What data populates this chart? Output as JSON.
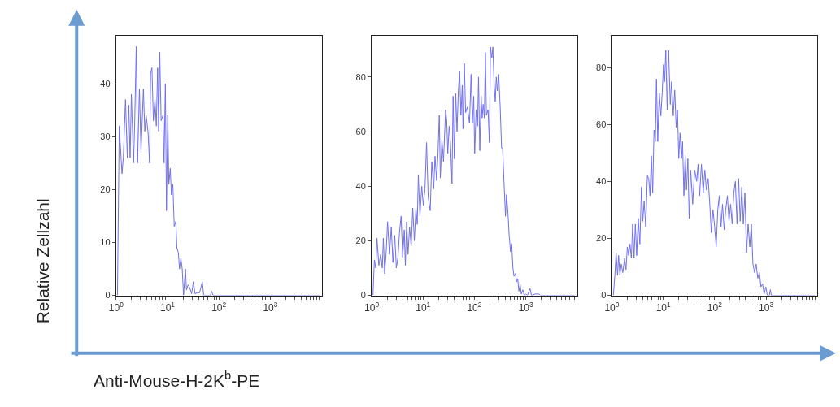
{
  "chart_data": [
    {
      "type": "line",
      "xlabel": "Anti-Mouse-H-2K$^{b}$-PE",
      "ylabel": "Relative Zellzahl",
      "log": "x",
      "grid": false,
      "marker": "none",
      "line_style": "solid",
      "xlim": [
        1,
        10000
      ],
      "ylim": [
        0,
        49
      ],
      "xticks": [
        {
          "value": 1,
          "label": "10$^{0}$"
        },
        {
          "value": 2,
          "label": null
        },
        {
          "value": 3,
          "label": null
        },
        {
          "value": 4,
          "label": null
        },
        {
          "value": 5,
          "label": null
        },
        {
          "value": 6,
          "label": null
        },
        {
          "value": 7,
          "label": null
        },
        {
          "value": 8,
          "label": null
        },
        {
          "value": 9,
          "label": null
        },
        {
          "value": 10,
          "label": "10$^{1}$"
        },
        {
          "value": 20,
          "label": null
        },
        {
          "value": 30,
          "label": null
        },
        {
          "value": 40,
          "label": null
        },
        {
          "value": 50,
          "label": null
        },
        {
          "value": 60,
          "label": null
        },
        {
          "value": 70,
          "label": null
        },
        {
          "value": 80,
          "label": null
        },
        {
          "value": 90,
          "label": null
        },
        {
          "value": 100,
          "label": "10$^{2}$"
        },
        {
          "value": 200,
          "label": null
        },
        {
          "value": 300,
          "label": null
        },
        {
          "value": 400,
          "label": null
        },
        {
          "value": 500,
          "label": null
        },
        {
          "value": 600,
          "label": null
        },
        {
          "value": 700,
          "label": null
        },
        {
          "value": 800,
          "label": null
        },
        {
          "value": 900,
          "label": null
        },
        {
          "value": 1000,
          "label": "10$^{3}$"
        },
        {
          "value": 2000,
          "label": null
        },
        {
          "value": 3000,
          "label": null
        },
        {
          "value": 4000,
          "label": null
        },
        {
          "value": 5000,
          "label": null
        },
        {
          "value": 6000,
          "label": null
        },
        {
          "value": 7000,
          "label": null
        },
        {
          "value": 8000,
          "label": null
        },
        {
          "value": 9000,
          "label": null
        }
      ],
      "yticks": [
        0,
        10,
        20,
        30,
        40
      ],
      "series": [
        {
          "color": "#7070ee",
          "x": [
            1.06,
            1.15,
            1.3,
            1.38,
            1.52,
            1.65,
            1.76,
            1.87,
            1.98,
            2.18,
            2.29,
            2.46,
            2.61,
            2.84,
            3.05,
            3.39,
            3.61,
            3.83,
            4.17,
            4.47,
            4.69,
            4.98,
            5.3,
            5.69,
            6.05,
            6.41,
            6.72,
            7.06,
            7.51,
            8.15,
            8.55,
            9.08,
            9.53,
            10.1,
            10.6,
            11.3,
            11.9,
            12.7,
            13.5,
            14.5,
            15.2,
            16.3,
            17.1,
            18.2,
            19.3,
            20.5,
            22.3,
            23.4,
            25.2,
            27,
            29.4,
            31.9,
            34.3,
            37.3,
            42.1,
            47.5,
            50.5,
            68,
            72,
            77,
            9000
          ],
          "values": [
            0,
            32,
            23,
            26,
            37,
            26,
            36,
            26,
            38,
            25,
            32,
            47,
            25,
            39,
            27,
            39,
            31,
            34,
            31,
            25,
            42,
            43,
            33,
            37,
            32,
            43,
            31,
            46,
            33,
            34,
            25,
            40,
            16,
            34,
            21,
            24,
            19,
            21,
            13,
            14,
            9,
            8,
            5,
            7,
            5,
            0,
            5,
            1,
            2,
            1.5,
            0.3,
            2.6,
            0.3,
            0.5,
            0.5,
            2.6,
            0,
            0,
            0.8,
            0,
            0
          ]
        }
      ]
    },
    {
      "type": "line",
      "log": "x",
      "grid": false,
      "marker": "none",
      "line_style": "solid",
      "xlim": [
        1,
        10000
      ],
      "ylim": [
        0,
        95
      ],
      "xticks": [
        {
          "value": 1,
          "label": "10$^{0}$"
        },
        {
          "value": 2,
          "label": null
        },
        {
          "value": 3,
          "label": null
        },
        {
          "value": 4,
          "label": null
        },
        {
          "value": 5,
          "label": null
        },
        {
          "value": 6,
          "label": null
        },
        {
          "value": 7,
          "label": null
        },
        {
          "value": 8,
          "label": null
        },
        {
          "value": 9,
          "label": null
        },
        {
          "value": 10,
          "label": "10$^{1}$"
        },
        {
          "value": 20,
          "label": null
        },
        {
          "value": 30,
          "label": null
        },
        {
          "value": 40,
          "label": null
        },
        {
          "value": 50,
          "label": null
        },
        {
          "value": 60,
          "label": null
        },
        {
          "value": 70,
          "label": null
        },
        {
          "value": 80,
          "label": null
        },
        {
          "value": 90,
          "label": null
        },
        {
          "value": 100,
          "label": "10$^{2}$"
        },
        {
          "value": 200,
          "label": null
        },
        {
          "value": 300,
          "label": null
        },
        {
          "value": 400,
          "label": null
        },
        {
          "value": 500,
          "label": null
        },
        {
          "value": 600,
          "label": null
        },
        {
          "value": 700,
          "label": null
        },
        {
          "value": 800,
          "label": null
        },
        {
          "value": 900,
          "label": null
        },
        {
          "value": 1000,
          "label": "10$^{3}$"
        },
        {
          "value": 2000,
          "label": null
        },
        {
          "value": 3000,
          "label": null
        },
        {
          "value": 4000,
          "label": null
        },
        {
          "value": 5000,
          "label": null
        },
        {
          "value": 6000,
          "label": null
        },
        {
          "value": 7000,
          "label": null
        },
        {
          "value": 8000,
          "label": null
        },
        {
          "value": 9000,
          "label": null
        }
      ],
      "yticks": [
        0,
        20,
        40,
        60,
        80
      ],
      "series": [
        {
          "color": "#7070ee",
          "x": [
            1.06,
            1.13,
            1.2,
            1.27,
            1.38,
            1.5,
            1.61,
            1.69,
            1.79,
            1.92,
            2.04,
            2.22,
            2.41,
            2.59,
            2.81,
            3.02,
            3.25,
            3.48,
            3.74,
            4.01,
            4.31,
            4.52,
            4.8,
            5.1,
            5.47,
            5.88,
            6.31,
            6.77,
            7.27,
            7.71,
            8.09,
            8.69,
            9.43,
            10.1,
            10.9,
            11.7,
            12.6,
            13.8,
            14.8,
            16.1,
            17.1,
            18.4,
            19.5,
            20.7,
            21.7,
            23.3,
            25,
            27.5,
            28.9,
            30.3,
            32.2,
            34.1,
            36.6,
            38.4,
            40.7,
            43.2,
            45.8,
            48.6,
            51.5,
            54.6,
            57.9,
            59.9,
            63.5,
            67.3,
            72.8,
            80.1,
            85.9,
            91.1,
            96.7,
            101,
            108,
            115,
            120,
            127,
            135,
            141,
            148,
            156,
            163,
            171,
            184,
            195,
            205,
            218,
            228,
            242,
            254,
            266,
            279,
            296,
            317,
            337,
            353,
            375,
            402,
            421,
            449,
            474,
            504,
            529,
            561,
            589,
            626,
            664,
            696,
            731,
            776,
            814,
            876,
            931,
            1000,
            1075,
            1209,
            1285,
            1540,
            1822,
            1930,
            9000
          ],
          "values": [
            0,
            13,
            10,
            21,
            11,
            15,
            10,
            21,
            8,
            16,
            27,
            15,
            25,
            12,
            22,
            10,
            14,
            23,
            29,
            14,
            24,
            11,
            27,
            15,
            25,
            18,
            32,
            20,
            32,
            26,
            44,
            29,
            40,
            33,
            39,
            56,
            36,
            31,
            49,
            39,
            51,
            42,
            52,
            66,
            43,
            57,
            49,
            68,
            64,
            52,
            62,
            56,
            41,
            73,
            50,
            74,
            60,
            75,
            82,
            66,
            77,
            61,
            85,
            67,
            69,
            63,
            81,
            63,
            73,
            52,
            68,
            62,
            80,
            53,
            73,
            65,
            70,
            65,
            89,
            66,
            68,
            56,
            91,
            87,
            91,
            77,
            71,
            80,
            75,
            81,
            69,
            54,
            54,
            42,
            29,
            37,
            30,
            22,
            16,
            19,
            10,
            7,
            8,
            5,
            6,
            1.5,
            4,
            0.5,
            2,
            0,
            0.5,
            0,
            2.5,
            0,
            0.5,
            0.5,
            0,
            0
          ]
        }
      ]
    },
    {
      "type": "line",
      "log": "x",
      "grid": false,
      "marker": "none",
      "line_style": "solid",
      "xlim": [
        1,
        10000
      ],
      "ylim": [
        0,
        91
      ],
      "xticks": [
        {
          "value": 1,
          "label": "10$^{0}$"
        },
        {
          "value": 2,
          "label": null
        },
        {
          "value": 3,
          "label": null
        },
        {
          "value": 4,
          "label": null
        },
        {
          "value": 5,
          "label": null
        },
        {
          "value": 6,
          "label": null
        },
        {
          "value": 7,
          "label": null
        },
        {
          "value": 8,
          "label": null
        },
        {
          "value": 9,
          "label": null
        },
        {
          "value": 10,
          "label": "10$^{1}$"
        },
        {
          "value": 20,
          "label": null
        },
        {
          "value": 30,
          "label": null
        },
        {
          "value": 40,
          "label": null
        },
        {
          "value": 50,
          "label": null
        },
        {
          "value": 60,
          "label": null
        },
        {
          "value": 70,
          "label": null
        },
        {
          "value": 80,
          "label": null
        },
        {
          "value": 90,
          "label": null
        },
        {
          "value": 100,
          "label": "10$^{2}$"
        },
        {
          "value": 200,
          "label": null
        },
        {
          "value": 300,
          "label": null
        },
        {
          "value": 400,
          "label": null
        },
        {
          "value": 500,
          "label": null
        },
        {
          "value": 600,
          "label": null
        },
        {
          "value": 700,
          "label": null
        },
        {
          "value": 800,
          "label": null
        },
        {
          "value": 900,
          "label": null
        },
        {
          "value": 1000,
          "label": "10$^{3}$"
        },
        {
          "value": 2000,
          "label": null
        },
        {
          "value": 3000,
          "label": null
        },
        {
          "value": 4000,
          "label": null
        },
        {
          "value": 5000,
          "label": null
        },
        {
          "value": 6000,
          "label": null
        },
        {
          "value": 7000,
          "label": null
        },
        {
          "value": 8000,
          "label": null
        },
        {
          "value": 9000,
          "label": null
        }
      ],
      "yticks": [
        0,
        20,
        40,
        60,
        80
      ],
      "series": [
        {
          "color": "#7070ee",
          "x": [
            1.07,
            1.14,
            1.21,
            1.29,
            1.35,
            1.43,
            1.52,
            1.63,
            1.77,
            1.88,
            2,
            2.12,
            2.25,
            2.39,
            2.54,
            2.7,
            2.86,
            3.04,
            3.26,
            3.5,
            3.76,
            3.99,
            4.24,
            4.56,
            4.9,
            5.2,
            5.52,
            5.86,
            6.22,
            6.61,
            7.01,
            7.36,
            7.81,
            8.36,
            8.98,
            9.53,
            10.1,
            10.6,
            11.2,
            11.9,
            12.7,
            13.7,
            14.5,
            15.6,
            16.7,
            17.8,
            18.9,
            20,
            21.2,
            22.6,
            23.7,
            25.2,
            26.7,
            28.3,
            30.1,
            31.9,
            34.2,
            37.3,
            40.9,
            44.7,
            47.5,
            50.9,
            55.3,
            59.9,
            64.3,
            69,
            74.7,
            80.9,
            86.1,
            92.8,
            100,
            107,
            115,
            123,
            133,
            142,
            153,
            164,
            177,
            190,
            204,
            219,
            236,
            253,
            272,
            292,
            314,
            337,
            361,
            388,
            417,
            448,
            482,
            518,
            556,
            598,
            642,
            690,
            741,
            796,
            855,
            919,
            987,
            1060,
            1160,
            1210,
            1270,
            9000
          ],
          "values": [
            0,
            7,
            15,
            7,
            14,
            7,
            11,
            8,
            13,
            9,
            17,
            14,
            18,
            13,
            25,
            13,
            25,
            14,
            27,
            18,
            38,
            26,
            33,
            24,
            42,
            41,
            35,
            49,
            36,
            58,
            54,
            76,
            54,
            71,
            63,
            71,
            81,
            75,
            86,
            65,
            86,
            67,
            75,
            63,
            72,
            59,
            65,
            48,
            57,
            48,
            54,
            35,
            49,
            37,
            48,
            27,
            44,
            32,
            44,
            40,
            46,
            35,
            46,
            36,
            44,
            37,
            41,
            31,
            22,
            30,
            24,
            17,
            30,
            35,
            24,
            32,
            23,
            30,
            35,
            26,
            32,
            25,
            36,
            40,
            25,
            41,
            26,
            38,
            25,
            36,
            15,
            25,
            17,
            25,
            11,
            8,
            11,
            6,
            8,
            3,
            4,
            0.5,
            3,
            0,
            0,
            2,
            0,
            0
          ]
        }
      ]
    }
  ]
}
